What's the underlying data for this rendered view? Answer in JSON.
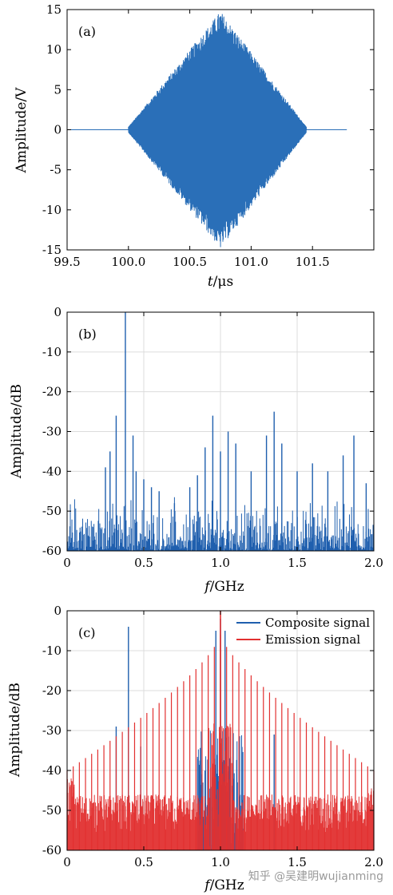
{
  "colors": {
    "blue": "#1f5fae",
    "signalBlue": "#2a6fb8",
    "red": "#e23030",
    "grid": "#dcdcdc"
  },
  "watermark": "知乎 @吴建明wujianming",
  "chart_data": [
    {
      "type": "line",
      "panel_label": "(a)",
      "xlabel_var": "t",
      "xlabel_unit": "/μs",
      "ylabel": "Amplitude/V",
      "xlim": [
        99.5,
        102.0
      ],
      "ylim": [
        -15,
        15
      ],
      "xticks": [
        "99.5",
        "100.0",
        "100.5",
        "101.0",
        "101.5"
      ],
      "xtick_values": [
        99.5,
        100.0,
        100.5,
        101.0,
        101.5
      ],
      "yticks": [
        "15",
        "10",
        "5",
        "0",
        "-5",
        "-10",
        "-15"
      ],
      "ytick_values": [
        15,
        10,
        5,
        0,
        -5,
        -10,
        -15
      ],
      "grid": false,
      "series": [
        {
          "description_points": {
            "x": [
              99.5,
              100.0,
              100.75,
              101.45,
              101.78
            ],
            "envelope": [
              0,
              0,
              14.5,
              0,
              0
            ]
          }
        }
      ]
    },
    {
      "type": "line",
      "panel_label": "(b)",
      "xlabel_var": "f",
      "xlabel_unit": "/GHz",
      "ylabel": "Amplitude/dB",
      "xlim": [
        0,
        2.0
      ],
      "ylim": [
        -60,
        0
      ],
      "xticks": [
        "0",
        "0.5",
        "1.0",
        "1.5",
        "2.0"
      ],
      "xtick_values": [
        0,
        0.5,
        1.0,
        1.5,
        2.0
      ],
      "yticks": [
        "0",
        "-10",
        "-20",
        "-30",
        "-40",
        "-50",
        "-60"
      ],
      "ytick_values": [
        0,
        -10,
        -20,
        -30,
        -40,
        -50,
        -60
      ],
      "grid": true,
      "series": [
        {
          "peaks": {
            "f": [
              0.38,
              0.32,
              0.28,
              0.25,
              0.43,
              0.45,
              0.5,
              0.55,
              0.6,
              0.7,
              0.8,
              0.85,
              0.9,
              0.95,
              1.0,
              1.05,
              1.1,
              1.2,
              1.3,
              1.35,
              1.4,
              1.5,
              1.6,
              1.7,
              1.8,
              1.87,
              1.95
            ],
            "dB": [
              0,
              -26,
              -35,
              -39,
              -31,
              -40,
              -42,
              -44,
              -45,
              -48,
              -44,
              -41,
              -34,
              -26,
              -35,
              -30,
              -33,
              -40,
              -31,
              -25,
              -33,
              -40,
              -38,
              -40,
              -36,
              -31,
              -43
            ]
          }
        }
      ]
    },
    {
      "type": "line",
      "panel_label": "(c)",
      "xlabel_var": "f",
      "xlabel_unit": "/GHz",
      "ylabel": "Amplitude/dB",
      "xlim": [
        0,
        2.0
      ],
      "ylim": [
        -60,
        0
      ],
      "xticks": [
        "0",
        "0.5",
        "1.0",
        "1.5",
        "2.0"
      ],
      "xtick_values": [
        0,
        0.5,
        1.0,
        1.5,
        2.0
      ],
      "yticks": [
        "0",
        "-10",
        "-20",
        "-30",
        "-40",
        "-50",
        "-60"
      ],
      "ytick_values": [
        0,
        -10,
        -20,
        -30,
        -40,
        -50,
        -60
      ],
      "grid": true,
      "legend_position": "top-right",
      "series": [
        {
          "name": "Composite signal",
          "peaks": {
            "f": [
              0.4,
              0.32,
              0.48,
              0.97,
              1.0,
              1.03,
              1.35
            ],
            "dB": [
              -4,
              -29,
              -34,
              -5,
              -2,
              -5,
              -31
            ]
          }
        },
        {
          "name": "Emission signal",
          "comb_spacing_GHz": 0.04,
          "center_GHz": 1.0,
          "peaks": {
            "f": [
              0.0,
              0.2,
              0.4,
              0.6,
              0.8,
              0.9,
              1.0,
              1.1,
              1.2,
              1.4,
              1.6,
              1.8,
              2.0
            ],
            "dB": [
              -39,
              -37,
              -33,
              -29,
              -20,
              -12,
              0,
              -12,
              -20,
              -29,
              -33,
              -37,
              -39
            ]
          }
        }
      ]
    }
  ]
}
